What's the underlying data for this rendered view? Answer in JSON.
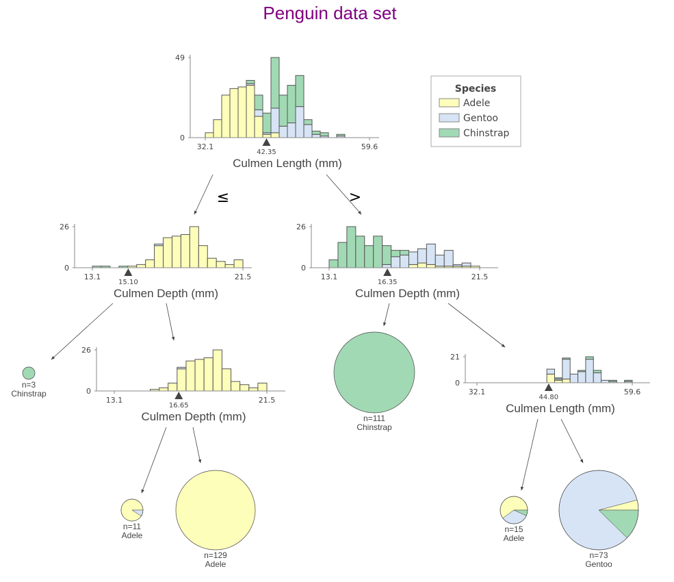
{
  "title": "Penguin data set",
  "colors": {
    "Adele": "#fefebb",
    "Gentoo": "#d7e4f5",
    "Chinstrap": "#a1d9b4",
    "title": "#800080"
  },
  "legend": {
    "title": "Species",
    "items": [
      {
        "label": "Adele",
        "color_key": "Adele"
      },
      {
        "label": "Gentoo",
        "color_key": "Gentoo"
      },
      {
        "label": "Chinstrap",
        "color_key": "Chinstrap"
      }
    ]
  },
  "edge_labels": {
    "left": "≤",
    "right": ">"
  },
  "chart_data": {
    "type": "decision-tree",
    "classes": [
      "Adele",
      "Gentoo",
      "Chinstrap"
    ],
    "nodes": [
      {
        "id": "root",
        "feature": "Culmen Length (mm)",
        "split": "42.35",
        "x_ticks": [
          "32.1",
          "59.6"
        ],
        "xlim": [
          32.1,
          59.6
        ],
        "ymax": 49,
        "y_ticks": [
          "0",
          "49"
        ],
        "bins": 20,
        "bin_start": 32.1,
        "bin_width": 1.375,
        "counts": {
          "Adele": [
            3,
            11,
            26,
            30,
            31,
            32,
            13,
            2,
            3,
            0,
            0,
            0,
            0,
            0,
            0,
            0,
            0,
            0,
            0,
            0
          ],
          "Gentoo": [
            0,
            0,
            0,
            0,
            0,
            1,
            4,
            1,
            15,
            7,
            9,
            19,
            8,
            2,
            1,
            0,
            1,
            0,
            0,
            0
          ],
          "Chinstrap": [
            0,
            0,
            0,
            0,
            0,
            2,
            9,
            12,
            31,
            19,
            23,
            19,
            3,
            2,
            2,
            0,
            1,
            0,
            0,
            0
          ]
        }
      },
      {
        "id": "left",
        "feature": "Culmen Depth (mm)",
        "split": "15.10",
        "x_ticks": [
          "13.1",
          "21.5"
        ],
        "xlim": [
          13.1,
          21.5
        ],
        "ymax": 26,
        "y_ticks": [
          "0",
          "26"
        ],
        "bins": 17,
        "bin_start": 13.1,
        "bin_width": 0.494,
        "counts": {
          "Adele": [
            0,
            0,
            0,
            0,
            1,
            2,
            5,
            14,
            19,
            20,
            21,
            26,
            14,
            6,
            4,
            2,
            5
          ],
          "Gentoo": [
            0,
            0,
            0,
            0,
            0,
            0,
            0,
            1,
            0,
            0,
            0,
            0,
            0,
            0,
            0,
            0,
            0
          ],
          "Chinstrap": [
            1,
            1,
            0,
            1,
            0,
            0,
            0,
            0,
            0,
            0,
            0,
            0,
            0,
            0,
            0,
            0,
            0
          ]
        }
      },
      {
        "id": "right",
        "feature": "Culmen Depth (mm)",
        "split": "16.35",
        "x_ticks": [
          "13.1",
          "21.5"
        ],
        "xlim": [
          13.1,
          21.5
        ],
        "ymax": 26,
        "y_ticks": [
          "0",
          "26"
        ],
        "bins": 17,
        "bin_start": 13.1,
        "bin_width": 0.494,
        "counts": {
          "Adele": [
            0,
            0,
            0,
            0,
            0,
            0,
            0,
            0,
            0,
            2,
            3,
            2,
            1,
            1,
            1,
            1,
            1
          ],
          "Gentoo": [
            0,
            0,
            0,
            0,
            0,
            0,
            2,
            7,
            8,
            8,
            9,
            13,
            7,
            10,
            1,
            2,
            0
          ],
          "Chinstrap": [
            5,
            16,
            26,
            20,
            14,
            20,
            12,
            4,
            3,
            0,
            0,
            0,
            0,
            0,
            0,
            0,
            0
          ]
        }
      },
      {
        "id": "left-right",
        "feature": "Culmen Depth (mm)",
        "split": "16.65",
        "x_ticks": [
          "13.1",
          "21.5"
        ],
        "xlim": [
          13.1,
          21.5
        ],
        "ymax": 26,
        "y_ticks": [
          "0",
          "26"
        ],
        "bins": 17,
        "bin_start": 13.1,
        "bin_width": 0.494,
        "counts": {
          "Adele": [
            0,
            0,
            0,
            0,
            1,
            2,
            5,
            14,
            19,
            20,
            21,
            26,
            14,
            6,
            4,
            2,
            5
          ],
          "Gentoo": [
            0,
            0,
            0,
            0,
            0,
            0,
            0,
            1,
            0,
            0,
            0,
            0,
            0,
            0,
            0,
            0,
            0
          ],
          "Chinstrap": [
            0,
            0,
            0,
            0,
            0,
            0,
            0,
            0,
            0,
            0,
            0,
            0,
            0,
            0,
            0,
            0,
            0
          ]
        }
      },
      {
        "id": "right-right",
        "feature": "Culmen Length (mm)",
        "split": "44.80",
        "x_ticks": [
          "32.1",
          "59.6"
        ],
        "xlim": [
          32.1,
          59.6
        ],
        "ymax": 21,
        "y_ticks": [
          "0",
          "21"
        ],
        "bins": 20,
        "bin_start": 32.1,
        "bin_width": 1.375,
        "counts": {
          "Adele": [
            0,
            0,
            0,
            0,
            0,
            0,
            0,
            0,
            0,
            7,
            2,
            3,
            0,
            0,
            0,
            0,
            0,
            0,
            0,
            0
          ],
          "Gentoo": [
            0,
            0,
            0,
            0,
            0,
            0,
            0,
            0,
            0,
            4,
            1,
            16,
            7,
            9,
            19,
            8,
            2,
            1,
            0,
            1
          ],
          "Chinstrap": [
            0,
            0,
            0,
            0,
            0,
            0,
            0,
            0,
            0,
            0,
            1,
            1,
            0,
            1,
            2,
            2,
            0,
            1,
            0,
            1
          ]
        }
      }
    ],
    "leaves": [
      {
        "id": "leaf-left-left",
        "n_label": "n=3",
        "class_label": "Chinstrap",
        "n": 3,
        "counts": {
          "Adele": 0,
          "Gentoo": 0,
          "Chinstrap": 3
        }
      },
      {
        "id": "leaf-left-right-left",
        "n_label": "n=11",
        "class_label": "Adele",
        "n": 11,
        "counts": {
          "Adele": 10,
          "Gentoo": 1,
          "Chinstrap": 0
        }
      },
      {
        "id": "leaf-left-right-right",
        "n_label": "n=129",
        "class_label": "Adele",
        "n": 129,
        "counts": {
          "Adele": 129,
          "Gentoo": 0,
          "Chinstrap": 0
        }
      },
      {
        "id": "leaf-right-left",
        "n_label": "n=111",
        "class_label": "Chinstrap",
        "n": 111,
        "counts": {
          "Adele": 0,
          "Gentoo": 0,
          "Chinstrap": 111
        }
      },
      {
        "id": "leaf-right-right-left",
        "n_label": "n=15",
        "class_label": "Adele",
        "n": 15,
        "counts": {
          "Adele": 9,
          "Gentoo": 5,
          "Chinstrap": 1
        }
      },
      {
        "id": "leaf-right-right-right",
        "n_label": "n=73",
        "class_label": "Gentoo",
        "n": 73,
        "counts": {
          "Adele": 3,
          "Gentoo": 61,
          "Chinstrap": 9
        }
      }
    ]
  }
}
